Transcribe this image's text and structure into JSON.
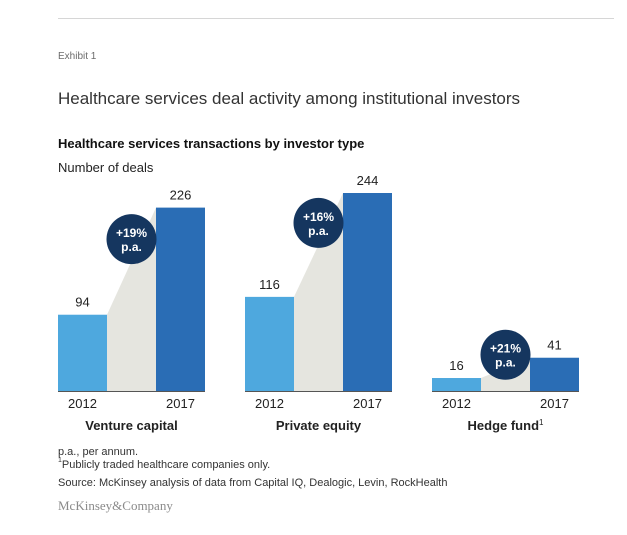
{
  "header": {
    "exhibit": "Exhibit 1",
    "title": "Healthcare services deal activity among institutional investors"
  },
  "colors": {
    "bar_2012": "#4ea8de",
    "bar_2017": "#2a6db5",
    "connector": "#e5e5df",
    "badge": "#15365f",
    "axis": "#555555"
  },
  "chart_data": {
    "type": "bar",
    "title": "Healthcare services transactions by investor type",
    "ylabel": "Number of deals",
    "ylim": [
      0,
      244
    ],
    "groups": [
      {
        "name": "Venture capital",
        "sup": "",
        "categories": [
          "2012",
          "2017"
        ],
        "values": [
          94,
          226
        ],
        "growth": "+19%",
        "growth_unit": "p.a."
      },
      {
        "name": "Private equity",
        "sup": "",
        "categories": [
          "2012",
          "2017"
        ],
        "values": [
          116,
          244
        ],
        "growth": "+16%",
        "growth_unit": "p.a."
      },
      {
        "name": "Hedge fund",
        "sup": "1",
        "categories": [
          "2012",
          "2017"
        ],
        "values": [
          16,
          41
        ],
        "growth": "+21%",
        "growth_unit": "p.a."
      }
    ]
  },
  "footnotes": {
    "pa": "p.a., per annum.",
    "note1_mark": "1",
    "note1": "Publicly traded healthcare companies only.",
    "source": "Source: McKinsey analysis of data from Capital IQ, Dealogic, Levin, RockHealth"
  },
  "logo": "McKinsey&Company"
}
